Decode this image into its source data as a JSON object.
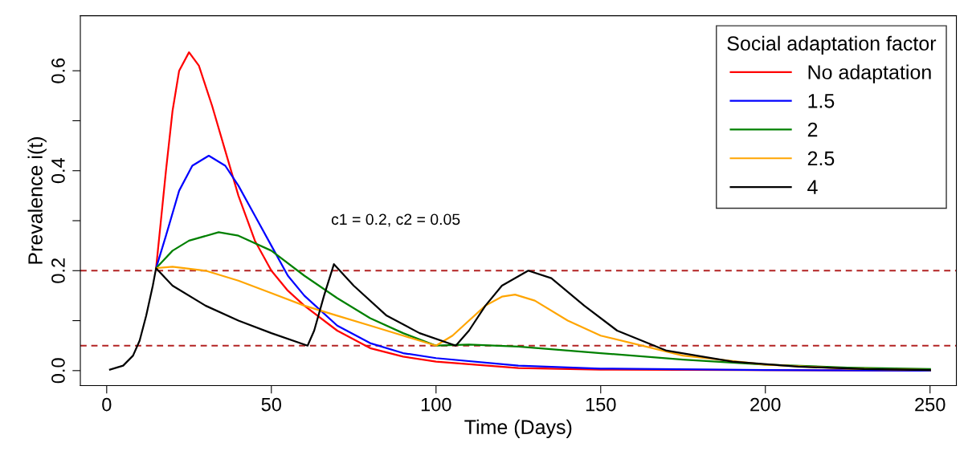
{
  "chart_data": {
    "type": "line",
    "xlabel": "Time (Days)",
    "ylabel": "Prevalence i(t)",
    "legend_title": "Social adaptation factor",
    "legend": "top right",
    "grid": false,
    "line_style": "solid",
    "marker": "none",
    "xlim": [
      -8,
      258
    ],
    "ylim": [
      -0.03,
      0.71
    ],
    "xticks": [
      0,
      50,
      100,
      150,
      200,
      250
    ],
    "yticks": [
      {
        "value": 0,
        "label": "0.0"
      },
      {
        "value": 0.1,
        "label": null
      },
      {
        "value": 0.2,
        "label": "0.2"
      },
      {
        "value": 0.3,
        "label": null
      },
      {
        "value": 0.4,
        "label": "0.4"
      },
      {
        "value": 0.5,
        "label": null
      },
      {
        "value": 0.6,
        "label": "0.6"
      }
    ],
    "annotations": [
      "c1 = 0.2, c2 = 0.05"
    ],
    "ref_lines": [
      {
        "axis": "y",
        "value": 0.2,
        "color": "#b22222",
        "line_style": "dashed"
      },
      {
        "axis": "y",
        "value": 0.05,
        "color": "#b22222",
        "line_style": "dashed"
      }
    ],
    "series": [
      {
        "name": "No adaptation",
        "color": "#ff0000",
        "x": [
          15,
          18,
          20,
          22,
          25,
          28,
          32,
          36,
          40,
          45,
          50,
          55,
          60,
          70,
          80,
          90,
          100,
          125,
          150,
          250
        ],
        "values": [
          0.205,
          0.4,
          0.52,
          0.6,
          0.637,
          0.61,
          0.53,
          0.44,
          0.35,
          0.26,
          0.2,
          0.16,
          0.13,
          0.08,
          0.045,
          0.028,
          0.018,
          0.005,
          0.002,
          0.0
        ]
      },
      {
        "name": "1.5",
        "color": "#0000ff",
        "x": [
          15,
          18,
          22,
          26,
          31,
          36,
          40,
          45,
          50,
          55,
          60,
          70,
          80,
          90,
          100,
          125,
          150,
          200,
          250
        ],
        "values": [
          0.205,
          0.27,
          0.36,
          0.41,
          0.43,
          0.41,
          0.37,
          0.31,
          0.25,
          0.19,
          0.15,
          0.09,
          0.055,
          0.035,
          0.025,
          0.01,
          0.004,
          0.001,
          0.0
        ]
      },
      {
        "name": "2",
        "color": "#008000",
        "x": [
          15,
          20,
          25,
          34,
          40,
          50,
          60,
          70,
          80,
          90,
          100,
          110,
          125,
          150,
          175,
          200,
          225,
          250
        ],
        "values": [
          0.205,
          0.24,
          0.26,
          0.277,
          0.27,
          0.24,
          0.19,
          0.145,
          0.105,
          0.075,
          0.05,
          0.052,
          0.048,
          0.035,
          0.022,
          0.012,
          0.006,
          0.003
        ]
      },
      {
        "name": "2.5",
        "color": "#ffa500",
        "x": [
          15,
          20,
          30,
          40,
          50,
          60,
          70,
          80,
          90,
          100,
          105,
          110,
          115,
          120,
          124,
          130,
          140,
          150,
          175,
          200,
          225,
          250
        ],
        "values": [
          0.205,
          0.208,
          0.2,
          0.18,
          0.155,
          0.13,
          0.11,
          0.09,
          0.07,
          0.05,
          0.07,
          0.1,
          0.13,
          0.148,
          0.152,
          0.14,
          0.1,
          0.07,
          0.03,
          0.012,
          0.004,
          0.001
        ]
      },
      {
        "name": "4",
        "color": "#000000",
        "x": [
          1,
          5,
          8,
          10,
          12,
          14,
          15,
          20,
          30,
          40,
          50,
          61,
          63,
          66,
          69,
          75,
          85,
          95,
          106,
          110,
          115,
          120,
          128,
          135,
          145,
          155,
          170,
          190,
          210,
          230,
          250
        ],
        "values": [
          0.002,
          0.01,
          0.03,
          0.06,
          0.11,
          0.17,
          0.205,
          0.17,
          0.13,
          0.1,
          0.075,
          0.05,
          0.08,
          0.15,
          0.213,
          0.17,
          0.11,
          0.075,
          0.05,
          0.08,
          0.13,
          0.17,
          0.2,
          0.185,
          0.13,
          0.08,
          0.04,
          0.018,
          0.008,
          0.003,
          0.001
        ]
      }
    ]
  }
}
